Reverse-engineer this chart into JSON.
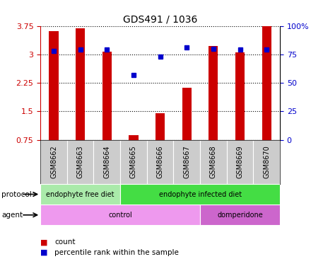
{
  "title": "GDS491 / 1036",
  "samples": [
    "GSM8662",
    "GSM8663",
    "GSM8664",
    "GSM8665",
    "GSM8666",
    "GSM8667",
    "GSM8668",
    "GSM8669",
    "GSM8670"
  ],
  "counts": [
    3.62,
    3.68,
    3.08,
    0.88,
    1.46,
    2.12,
    3.22,
    3.06,
    3.75
  ],
  "percentile_ranks": [
    78,
    79,
    79,
    57,
    73,
    81,
    80,
    79,
    79
  ],
  "ylim_left": [
    0.75,
    3.75
  ],
  "ylim_right": [
    0,
    100
  ],
  "yticks_left": [
    0.75,
    1.5,
    2.25,
    3.0,
    3.75
  ],
  "ytick_labels_left": [
    "0.75",
    "1.5",
    "2.25",
    "3",
    "3.75"
  ],
  "yticks_right": [
    0,
    25,
    50,
    75,
    100
  ],
  "ytick_labels_right": [
    "0",
    "25",
    "50",
    "75",
    "100%"
  ],
  "bar_color": "#cc0000",
  "dot_color": "#0000cc",
  "protocol_groups": [
    {
      "label": "endophyte free diet",
      "start": 0,
      "end": 3,
      "color": "#aaeaaa"
    },
    {
      "label": "endophyte infected diet",
      "start": 3,
      "end": 9,
      "color": "#44dd44"
    }
  ],
  "agent_groups": [
    {
      "label": "control",
      "start": 0,
      "end": 6,
      "color": "#ee99ee"
    },
    {
      "label": "domperidone",
      "start": 6,
      "end": 9,
      "color": "#cc66cc"
    }
  ],
  "legend_count_label": "count",
  "legend_percentile_label": "percentile rank within the sample",
  "tick_label_color_left": "#cc0000",
  "tick_label_color_right": "#0000cc",
  "bar_width": 0.35,
  "dotted_line_color": "#000000",
  "plot_bg_color": "#ffffff",
  "tick_area_color": "#cccccc",
  "label_left_text_protocol": "protocol",
  "label_left_text_agent": "agent"
}
